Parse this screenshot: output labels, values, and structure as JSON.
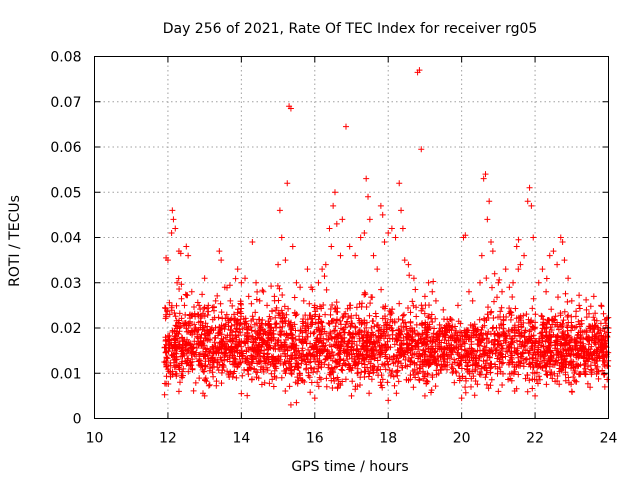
{
  "chart_data": {
    "type": "scatter",
    "title": "Day 256 of 2021, Rate Of TEC Index for receiver rg05",
    "xlabel": "GPS time / hours",
    "ylabel": "ROTI / TECUs",
    "xlim": [
      10,
      24
    ],
    "ylim": [
      0,
      0.08
    ],
    "x_ticks": [
      10,
      12,
      14,
      16,
      18,
      20,
      22,
      24
    ],
    "x_tick_labels": [
      "10",
      "12",
      "14",
      "16",
      "18",
      "20",
      "22",
      "24"
    ],
    "y_ticks": [
      0,
      0.01,
      0.02,
      0.03,
      0.04,
      0.05,
      0.06,
      0.07,
      0.08
    ],
    "y_tick_labels": [
      "0",
      "0.01",
      "0.02",
      "0.03",
      "0.04",
      "0.05",
      "0.06",
      "0.07",
      "0.08"
    ],
    "grid": true,
    "marker": "+",
    "series": [
      {
        "name": "ROTI",
        "color": "#ff0000",
        "points": [
          [
            11.95,
            0.0355
          ],
          [
            12.0,
            0.035
          ],
          [
            12.05,
            0.023
          ],
          [
            12.1,
            0.041
          ],
          [
            12.12,
            0.046
          ],
          [
            12.15,
            0.044
          ],
          [
            12.2,
            0.042
          ],
          [
            12.25,
            0.03
          ],
          [
            12.3,
            0.037
          ],
          [
            12.35,
            0.0365
          ],
          [
            12.45,
            0.025
          ],
          [
            12.5,
            0.038
          ],
          [
            12.55,
            0.036
          ],
          [
            12.65,
            0.028
          ],
          [
            12.75,
            0.02
          ],
          [
            12.85,
            0.025
          ],
          [
            13.0,
            0.031
          ],
          [
            13.1,
            0.025
          ],
          [
            13.2,
            0.02
          ],
          [
            13.3,
            0.026
          ],
          [
            13.4,
            0.037
          ],
          [
            13.45,
            0.035
          ],
          [
            13.55,
            0.029
          ],
          [
            13.7,
            0.026
          ],
          [
            13.8,
            0.023
          ],
          [
            13.9,
            0.033
          ],
          [
            14.0,
            0.03
          ],
          [
            14.1,
            0.031
          ],
          [
            14.2,
            0.027
          ],
          [
            14.3,
            0.039
          ],
          [
            14.4,
            0.03
          ],
          [
            14.5,
            0.026
          ],
          [
            14.6,
            0.028
          ],
          [
            14.7,
            0.025
          ],
          [
            14.8,
            0.022
          ],
          [
            14.9,
            0.027
          ],
          [
            15.0,
            0.034
          ],
          [
            15.05,
            0.046
          ],
          [
            15.1,
            0.04
          ],
          [
            15.2,
            0.035
          ],
          [
            15.25,
            0.052
          ],
          [
            15.3,
            0.069
          ],
          [
            15.35,
            0.0685
          ],
          [
            15.4,
            0.038
          ],
          [
            15.5,
            0.03
          ],
          [
            15.6,
            0.029
          ],
          [
            15.7,
            0.026
          ],
          [
            15.8,
            0.033
          ],
          [
            15.9,
            0.029
          ],
          [
            16.0,
            0.025
          ],
          [
            16.1,
            0.03
          ],
          [
            16.2,
            0.033
          ],
          [
            16.3,
            0.034
          ],
          [
            16.4,
            0.042
          ],
          [
            16.45,
            0.038
          ],
          [
            16.5,
            0.047
          ],
          [
            16.55,
            0.05
          ],
          [
            16.6,
            0.043
          ],
          [
            16.7,
            0.036
          ],
          [
            16.75,
            0.044
          ],
          [
            16.85,
            0.0645
          ],
          [
            16.95,
            0.038
          ],
          [
            17.1,
            0.036
          ],
          [
            17.25,
            0.04
          ],
          [
            17.35,
            0.041
          ],
          [
            17.4,
            0.053
          ],
          [
            17.45,
            0.049
          ],
          [
            17.5,
            0.044
          ],
          [
            17.6,
            0.036
          ],
          [
            17.7,
            0.033
          ],
          [
            17.8,
            0.047
          ],
          [
            17.85,
            0.045
          ],
          [
            17.9,
            0.039
          ],
          [
            18.0,
            0.041
          ],
          [
            18.1,
            0.042
          ],
          [
            18.2,
            0.04
          ],
          [
            18.3,
            0.052
          ],
          [
            18.35,
            0.046
          ],
          [
            18.4,
            0.042
          ],
          [
            18.45,
            0.035
          ],
          [
            18.55,
            0.034
          ],
          [
            18.7,
            0.031
          ],
          [
            18.8,
            0.0765
          ],
          [
            18.85,
            0.077
          ],
          [
            18.9,
            0.0595
          ],
          [
            19.0,
            0.027
          ],
          [
            19.1,
            0.03
          ],
          [
            19.2,
            0.028
          ],
          [
            19.3,
            0.026
          ],
          [
            19.5,
            0.024
          ],
          [
            19.7,
            0.022
          ],
          [
            19.9,
            0.025
          ],
          [
            20.05,
            0.04
          ],
          [
            20.1,
            0.0405
          ],
          [
            20.2,
            0.028
          ],
          [
            20.3,
            0.026
          ],
          [
            20.5,
            0.03
          ],
          [
            20.55,
            0.036
          ],
          [
            20.6,
            0.053
          ],
          [
            20.65,
            0.054
          ],
          [
            20.7,
            0.044
          ],
          [
            20.75,
            0.048
          ],
          [
            20.8,
            0.039
          ],
          [
            20.85,
            0.037
          ],
          [
            20.9,
            0.032
          ],
          [
            21.0,
            0.03
          ],
          [
            21.1,
            0.028
          ],
          [
            21.2,
            0.033
          ],
          [
            21.3,
            0.029
          ],
          [
            21.4,
            0.03
          ],
          [
            21.5,
            0.038
          ],
          [
            21.55,
            0.0395
          ],
          [
            21.6,
            0.034
          ],
          [
            21.7,
            0.036
          ],
          [
            21.8,
            0.048
          ],
          [
            21.85,
            0.051
          ],
          [
            21.9,
            0.047
          ],
          [
            21.95,
            0.04
          ],
          [
            22.1,
            0.03
          ],
          [
            22.2,
            0.033
          ],
          [
            22.3,
            0.028
          ],
          [
            22.4,
            0.036
          ],
          [
            22.5,
            0.037
          ],
          [
            22.6,
            0.034
          ],
          [
            22.7,
            0.04
          ],
          [
            22.75,
            0.039
          ],
          [
            22.8,
            0.035
          ],
          [
            22.9,
            0.031
          ],
          [
            23.0,
            0.026
          ],
          [
            23.2,
            0.025
          ],
          [
            23.4,
            0.024
          ],
          [
            23.6,
            0.027
          ],
          [
            23.8,
            0.025
          ],
          [
            24.0,
            0.02
          ],
          [
            15.35,
            0.003
          ],
          [
            15.5,
            0.0035
          ],
          [
            16.0,
            0.0045
          ],
          [
            17.0,
            0.005
          ],
          [
            18.0,
            0.004
          ],
          [
            19.0,
            0.005
          ],
          [
            12.3,
            0.006
          ],
          [
            13.0,
            0.005
          ],
          [
            14.0,
            0.0055
          ],
          [
            20.0,
            0.0045
          ],
          [
            21.0,
            0.006
          ],
          [
            22.0,
            0.005
          ],
          [
            23.0,
            0.006
          ],
          [
            23.9,
            0.007
          ]
        ],
        "band": {
          "x_range": [
            11.9,
            24.0
          ],
          "y_typical_min": 0.004,
          "y_typical_max": 0.026,
          "y_center": 0.012,
          "approx_count": 4200
        }
      }
    ]
  }
}
